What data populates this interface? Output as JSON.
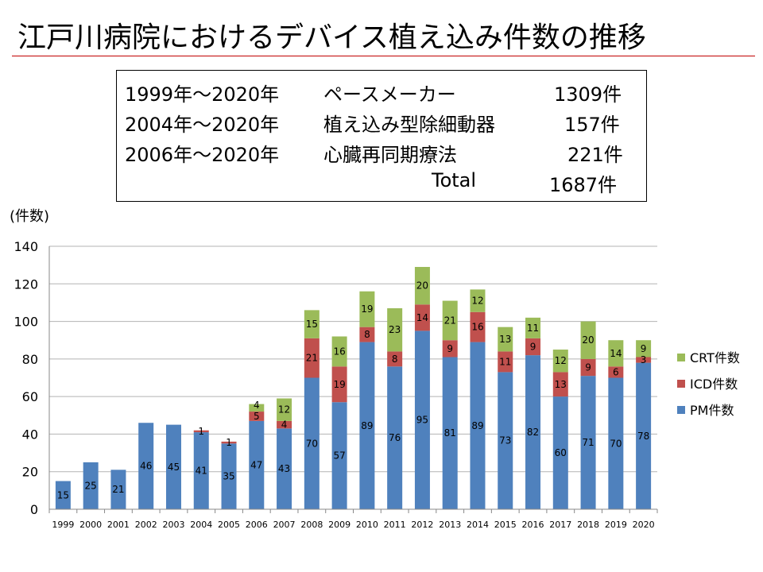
{
  "title": "江戸川病院におけるデバイス植え込み件数の推移",
  "summary": [
    {
      "period": "1999年～2020年",
      "device": "ペースメーカー",
      "count": "1309件"
    },
    {
      "period": "2004年～2020年",
      "device": "植え込み型除細動器",
      "count": "157件"
    },
    {
      "period": "2006年～2020年",
      "device": "心臓再同期療法",
      "count": "221件"
    },
    {
      "period": "",
      "device": "Total",
      "count": "1687件"
    }
  ],
  "chart_data": {
    "type": "bar",
    "stacked": true,
    "ylabel": "(件数)",
    "ylim": [
      0,
      140
    ],
    "yticks": [
      0,
      20,
      40,
      60,
      80,
      100,
      120,
      140
    ],
    "grid": true,
    "legend": "right",
    "categories": [
      "1999",
      "2000",
      "2001",
      "2002",
      "2003",
      "2004",
      "2005",
      "2006",
      "2007",
      "2008",
      "2009",
      "2010",
      "2011",
      "2012",
      "2013",
      "2014",
      "2015",
      "2016",
      "2017",
      "2018",
      "2019",
      "2020"
    ],
    "series": [
      {
        "name": "PM件数",
        "color": "#4f81bd",
        "values": [
          15,
          25,
          21,
          46,
          45,
          41,
          35,
          47,
          43,
          70,
          57,
          89,
          76,
          95,
          81,
          89,
          73,
          82,
          60,
          71,
          70,
          78
        ]
      },
      {
        "name": "ICD件数",
        "color": "#c0504d",
        "values": [
          0,
          0,
          0,
          0,
          0,
          1,
          1,
          5,
          4,
          21,
          19,
          8,
          8,
          14,
          9,
          16,
          11,
          9,
          13,
          9,
          6,
          3
        ]
      },
      {
        "name": "CRT件数",
        "color": "#9bbb59",
        "values": [
          0,
          0,
          0,
          0,
          0,
          0,
          0,
          4,
          12,
          15,
          16,
          19,
          23,
          20,
          21,
          12,
          13,
          11,
          12,
          20,
          14,
          9
        ]
      }
    ]
  }
}
